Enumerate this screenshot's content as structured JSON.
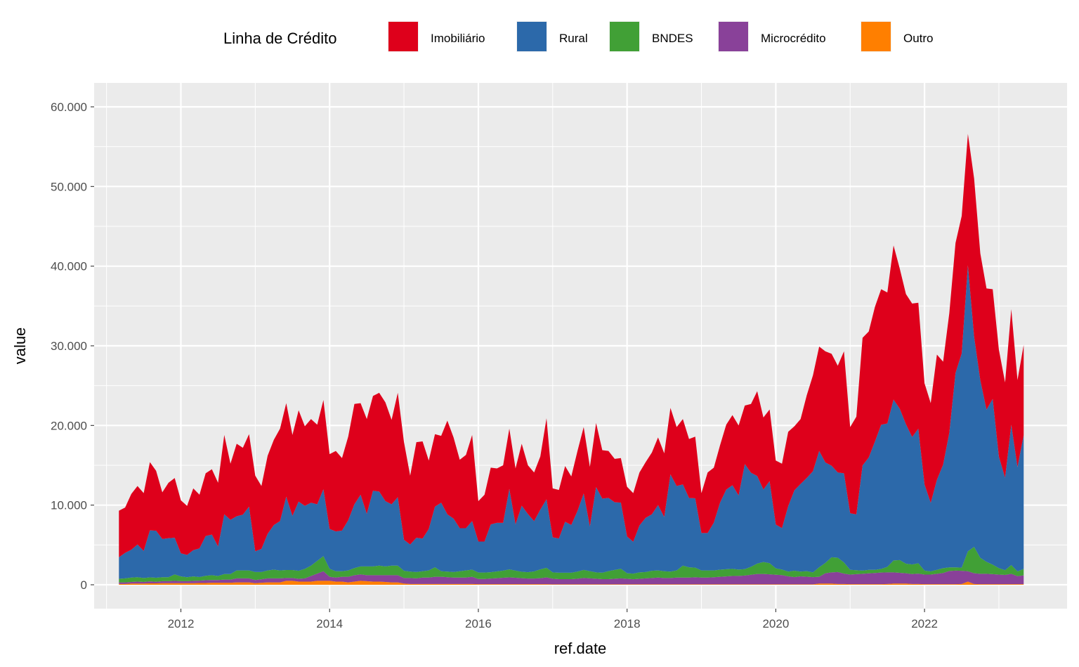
{
  "chart_data": {
    "type": "area",
    "stacked": true,
    "xlabel": "ref.date",
    "ylabel": "value",
    "legend": {
      "title": "Linha de Crédito",
      "position": "top"
    },
    "x_start": "2011-03",
    "x_end": "2023-05",
    "x_frequency": "monthly",
    "xlim": [
      "2010-11",
      "2023-12"
    ],
    "ylim": [
      -3000,
      63000
    ],
    "x_ticks": [
      "2012",
      "2014",
      "2016",
      "2018",
      "2020",
      "2022"
    ],
    "y_ticks": [
      {
        "value": 0,
        "label": "0"
      },
      {
        "value": 10000,
        "label": "10.000"
      },
      {
        "value": 20000,
        "label": "20.000"
      },
      {
        "value": 30000,
        "label": "30.000"
      },
      {
        "value": 40000,
        "label": "40.000"
      },
      {
        "value": 50000,
        "label": "50.000"
      },
      {
        "value": 60000,
        "label": "60.000"
      }
    ],
    "grid": true,
    "totals": [
      [
        9300,
        9700,
        11400,
        12400,
        11500,
        15400,
        14300,
        11600,
        12800,
        13400
      ],
      [
        10600,
        9700,
        12100,
        11300,
        14000,
        14500,
        12800,
        18800,
        15200,
        17700,
        17200,
        18900
      ],
      [
        13700,
        12400,
        16200,
        18200,
        19600,
        22800,
        18800,
        21900,
        19900,
        20800,
        20100,
        23200
      ],
      [
        16400,
        16800,
        15900,
        18600,
        22700,
        22800,
        20800,
        23700,
        24100,
        22900,
        20700,
        24100
      ],
      [
        17900,
        13700,
        17900,
        18000,
        15600,
        18900,
        18700,
        20600,
        18500,
        15700,
        16300,
        18800
      ],
      [
        10500,
        11300,
        14700,
        14600,
        15000,
        19600,
        14600,
        17700,
        15000,
        14100,
        16100,
        20900
      ],
      [
        12100,
        11900,
        14900,
        13600,
        16800,
        19800,
        14800,
        20300,
        16900,
        16800,
        15800,
        15900
      ],
      [
        12300,
        11500,
        14100,
        15400,
        16600,
        18500,
        16500,
        22200,
        19800,
        20800,
        18300,
        18600
      ],
      [
        11500,
        14100,
        14700,
        17500,
        20100,
        21300,
        20000,
        22500,
        22700,
        24300,
        21000,
        22000
      ],
      [
        15600,
        15200,
        19200,
        19900,
        20800,
        23800,
        26300,
        29900,
        29300,
        29000,
        27500,
        29300
      ],
      [
        19800,
        21100,
        31000,
        31800,
        34900,
        37100,
        36700,
        42600,
        39700,
        36500,
        35300,
        35400
      ],
      [
        25300,
        22800,
        28900,
        28000,
        34100,
        42900,
        46300,
        56600,
        49700,
        41600,
        37200,
        37100
      ],
      [
        29500,
        25400,
        34600,
        25700,
        30100
      ]
    ],
    "series": [
      {
        "name": "Outro",
        "color": "#FF7F00",
        "values": [
          [
            100,
            100,
            150,
            150,
            150,
            180,
            180,
            200,
            200,
            200
          ],
          [
            200,
            200,
            200,
            220,
            220,
            250,
            250,
            250,
            250,
            300,
            300,
            300
          ],
          [
            200,
            250,
            300,
            300,
            300,
            500,
            500,
            400,
            400,
            400,
            500,
            500
          ],
          [
            500,
            400,
            400,
            300,
            400,
            500,
            450,
            400,
            400,
            350,
            300,
            300
          ],
          [
            150,
            100,
            100,
            100,
            100,
            100,
            100,
            100,
            100,
            100,
            100,
            100
          ],
          [
            80,
            80,
            80,
            80,
            80,
            80,
            80,
            80,
            80,
            80,
            80,
            80
          ],
          [
            60,
            60,
            60,
            60,
            60,
            60,
            60,
            60,
            60,
            60,
            60,
            60
          ],
          [
            50,
            50,
            50,
            50,
            50,
            50,
            50,
            50,
            50,
            50,
            50,
            50
          ],
          [
            50,
            50,
            50,
            50,
            50,
            50,
            60,
            60,
            60,
            60,
            60,
            60
          ],
          [
            60,
            60,
            60,
            60,
            60,
            60,
            60,
            150,
            150,
            150,
            100,
            100
          ],
          [
            80,
            80,
            80,
            80,
            80,
            80,
            100,
            150,
            150,
            150,
            100,
            100
          ],
          [
            80,
            80,
            80,
            80,
            80,
            80,
            100,
            400,
            100,
            80,
            80,
            80
          ],
          [
            80,
            80,
            80,
            80,
            80
          ]
        ]
      },
      {
        "name": "Microcrédito",
        "color": "#894199",
        "values": [
          [
            200,
            200,
            200,
            250,
            200,
            250,
            200,
            250,
            250,
            300
          ],
          [
            250,
            250,
            300,
            300,
            350,
            350,
            350,
            400,
            400,
            500,
            500,
            500
          ],
          [
            400,
            450,
            500,
            500,
            500,
            350,
            350,
            350,
            400,
            700,
            900,
            1200
          ],
          [
            500,
            500,
            600,
            700,
            800,
            800,
            750,
            800,
            800,
            850,
            900,
            900
          ],
          [
            700,
            750,
            700,
            800,
            800,
            900,
            900,
            850,
            800,
            800,
            800,
            900
          ],
          [
            650,
            650,
            700,
            750,
            800,
            850,
            800,
            750,
            700,
            700,
            750,
            850
          ],
          [
            700,
            650,
            650,
            650,
            700,
            800,
            750,
            700,
            650,
            650,
            700,
            750
          ],
          [
            700,
            650,
            700,
            750,
            800,
            850,
            800,
            800,
            850,
            850,
            850,
            900
          ],
          [
            850,
            850,
            900,
            950,
            1000,
            1050,
            1050,
            1100,
            1200,
            1300,
            1300,
            1250
          ],
          [
            1200,
            1150,
            1000,
            900,
            1000,
            950,
            900,
            850,
            1300,
            1400,
            1500,
            1300
          ],
          [
            1200,
            1250,
            1300,
            1350,
            1400,
            1450,
            1450,
            1400,
            1350,
            1300,
            1250,
            1300
          ],
          [
            1200,
            1200,
            1300,
            1400,
            1650,
            1700,
            1650,
            1300,
            1350,
            1300,
            1300,
            1250
          ],
          [
            1200,
            1150,
            1300,
            1000,
            1100
          ]
        ]
      },
      {
        "name": "BNDES",
        "color": "#41A036",
        "values": [
          [
            450,
            500,
            550,
            550,
            500,
            500,
            500,
            500,
            500,
            800
          ],
          [
            600,
            500,
            550,
            450,
            550,
            600,
            500,
            700,
            700,
            1000,
            1000,
            1000
          ],
          [
            1000,
            900,
            1000,
            1100,
            1000,
            1000,
            1000,
            1000,
            1200,
            1300,
            1600,
            1900
          ],
          [
            1000,
            800,
            700,
            800,
            900,
            1000,
            1100,
            1100,
            1200,
            1100,
            1200,
            1200
          ],
          [
            900,
            800,
            800,
            800,
            900,
            1200,
            700,
            700,
            700,
            800,
            900,
            900
          ],
          [
            800,
            800,
            800,
            850,
            900,
            1000,
            900,
            800,
            800,
            900,
            1100,
            1200
          ],
          [
            800,
            800,
            800,
            800,
            900,
            1000,
            900,
            800,
            800,
            1000,
            1100,
            1200
          ],
          [
            700,
            700,
            800,
            800,
            900,
            900,
            850,
            800,
            900,
            1500,
            1300,
            1200
          ],
          [
            900,
            900,
            850,
            900,
            900,
            900,
            800,
            800,
            1000,
            1300,
            1500,
            1400
          ],
          [
            800,
            700,
            600,
            800,
            600,
            700,
            600,
            1200,
            1300,
            1900,
            1800,
            1400
          ],
          [
            600,
            500,
            400,
            450,
            400,
            450,
            700,
            1500,
            1600,
            1200,
            1200,
            1300
          ],
          [
            500,
            400,
            500,
            600,
            450,
            400,
            400,
            2500,
            3300,
            2000,
            1500,
            1200
          ],
          [
            800,
            600,
            1100,
            600,
            800
          ]
        ]
      },
      {
        "name": "Rural",
        "color": "#2C69AA",
        "values": [
          [
            2700,
            3200,
            3500,
            4100,
            3400,
            5900,
            5900,
            4800,
            4900,
            4600
          ],
          [
            2900,
            2800,
            3300,
            3600,
            5000,
            5100,
            3700,
            7500,
            6800,
            6800,
            7000,
            8000
          ],
          [
            2600,
            2900,
            4600,
            5600,
            6200,
            9200,
            6800,
            8700,
            7900,
            7900,
            7100,
            8400
          ],
          [
            5000,
            5000,
            5100,
            6300,
            8000,
            9000,
            6600,
            9500,
            9300,
            8200,
            7700,
            8600
          ],
          [
            3900,
            3400,
            4300,
            4100,
            5200,
            7600,
            8600,
            7200,
            6700,
            5400,
            5300,
            6100
          ],
          [
            3900,
            3900,
            6000,
            6100,
            6000,
            10100,
            5800,
            8300,
            7300,
            6300,
            7500,
            8600
          ],
          [
            4400,
            4300,
            6400,
            6000,
            7600,
            9600,
            5600,
            10700,
            9300,
            9200,
            8500,
            8300
          ],
          [
            4600,
            4000,
            5900,
            6800,
            7100,
            8200,
            6800,
            12200,
            10600,
            10200,
            8700,
            8700
          ],
          [
            4700,
            4700,
            6000,
            8400,
            10000,
            10500,
            9300,
            13200,
            11800,
            11000,
            9100,
            10300
          ],
          [
            5500,
            5200,
            8200,
            10100,
            11000,
            11700,
            12700,
            14600,
            12600,
            11500,
            10700,
            11200
          ],
          [
            7100,
            7000,
            13200,
            14100,
            16100,
            18100,
            18000,
            20200,
            19000,
            17500,
            16000,
            16900
          ],
          [
            10800,
            8600,
            11300,
            13000,
            16900,
            24400,
            26900,
            35900,
            26400,
            22300,
            19100,
            20800
          ],
          [
            14000,
            11600,
            17600,
            13100,
            16800
          ]
        ]
      },
      {
        "name": "Imobiliário",
        "color": "#DE001B",
        "values": [
          [
            5850,
            5700,
            7000,
            7350,
            7250,
            8570,
            7520,
            5850,
            6950,
            7500
          ],
          [
            6650,
            6150,
            7750,
            6730,
            7880,
            8200,
            8000,
            9950,
            7050,
            9100,
            8400,
            9100
          ],
          [
            9500,
            7900,
            9800,
            10700,
            11600,
            11750,
            10150,
            11450,
            10000,
            10500,
            10000,
            11200
          ],
          [
            9400,
            10100,
            9100,
            10500,
            12600,
            11500,
            11900,
            11900,
            12400,
            12400,
            10600,
            13100
          ],
          [
            12250,
            8650,
            12000,
            12200,
            8600,
            9100,
            8400,
            11750,
            10200,
            8600,
            9200,
            10800
          ],
          [
            5070,
            5870,
            7120,
            6820,
            7220,
            7570,
            7020,
            7770,
            6120,
            6120,
            6670,
            10170
          ],
          [
            6140,
            6090,
            6990,
            6090,
            7540,
            8340,
            7490,
            8040,
            6090,
            5890,
            5440,
            5590
          ],
          [
            6250,
            6100,
            6650,
            7000,
            7750,
            8500,
            8000,
            8350,
            7400,
            8200,
            7400,
            7750
          ],
          [
            5000,
            7600,
            6900,
            7200,
            8150,
            8800,
            8790,
            7340,
            8640,
            10640,
            9040,
            8990
          ],
          [
            8040,
            8090,
            9340,
            8040,
            8140,
            10390,
            12040,
            13100,
            13950,
            14050,
            13400,
            15300
          ],
          [
            10820,
            12270,
            16020,
            15820,
            16920,
            17020,
            16450,
            19350,
            17600,
            16350,
            16750,
            15800
          ],
          [
            12720,
            12520,
            15720,
            12920,
            15020,
            16320,
            17250,
            16500,
            19850,
            15920,
            15220,
            13770
          ],
          [
            13420,
            11970,
            14520,
            10920,
            11320
          ]
        ]
      }
    ]
  }
}
